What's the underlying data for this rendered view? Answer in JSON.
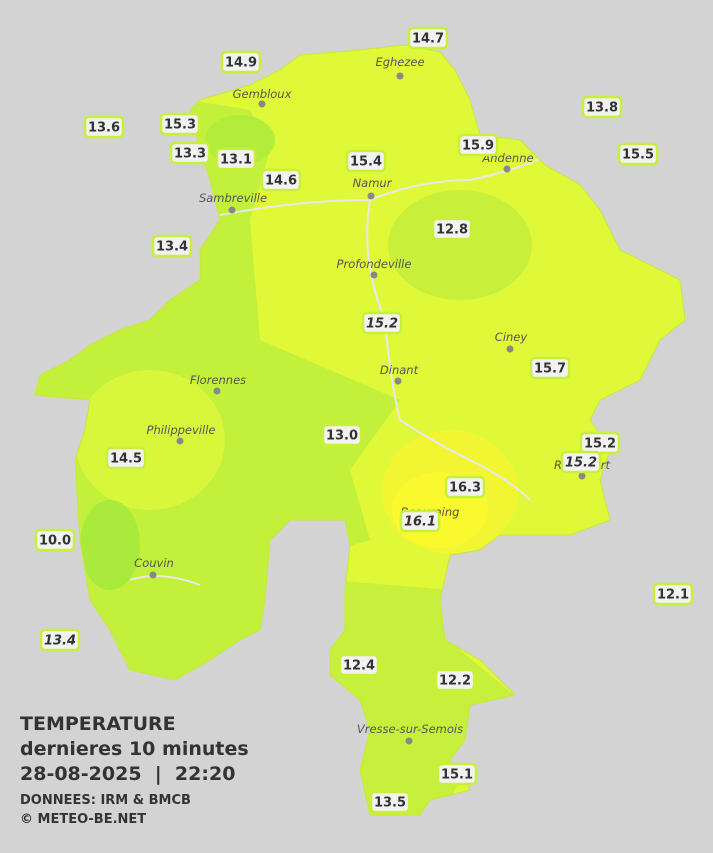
{
  "title": {
    "heading": "TEMPERATURE",
    "subtitle": "dernieres 10 minutes",
    "timestamp": "28-08-2025  |  22:20",
    "source": "DONNEES: IRM & BMCB",
    "copyright": "© METEO-BE.NET"
  },
  "stations": [
    "14.7",
    "14.9",
    "13.8",
    "13.6",
    "15.3",
    "15.9",
    "15.5",
    "13.3",
    "13.1",
    "15.4",
    "14.6",
    "12.8",
    "13.4",
    "15.2",
    "15.7",
    "13.0",
    "15.2",
    "15.2",
    "14.5",
    "16.3",
    "16.1",
    "10.0",
    "12.1",
    "13.4",
    "12.4",
    "12.2",
    "15.1",
    "13.5"
  ],
  "towns": [
    "Eghezee",
    "Gembloux",
    "Andenne",
    "Namur",
    "Sambreville",
    "Profondeville",
    "Ciney",
    "Dinant",
    "Florennes",
    "Philippeville",
    "Rochefort",
    "Beauraing",
    "Couvin",
    "Vresse-sur-Semois"
  ]
}
